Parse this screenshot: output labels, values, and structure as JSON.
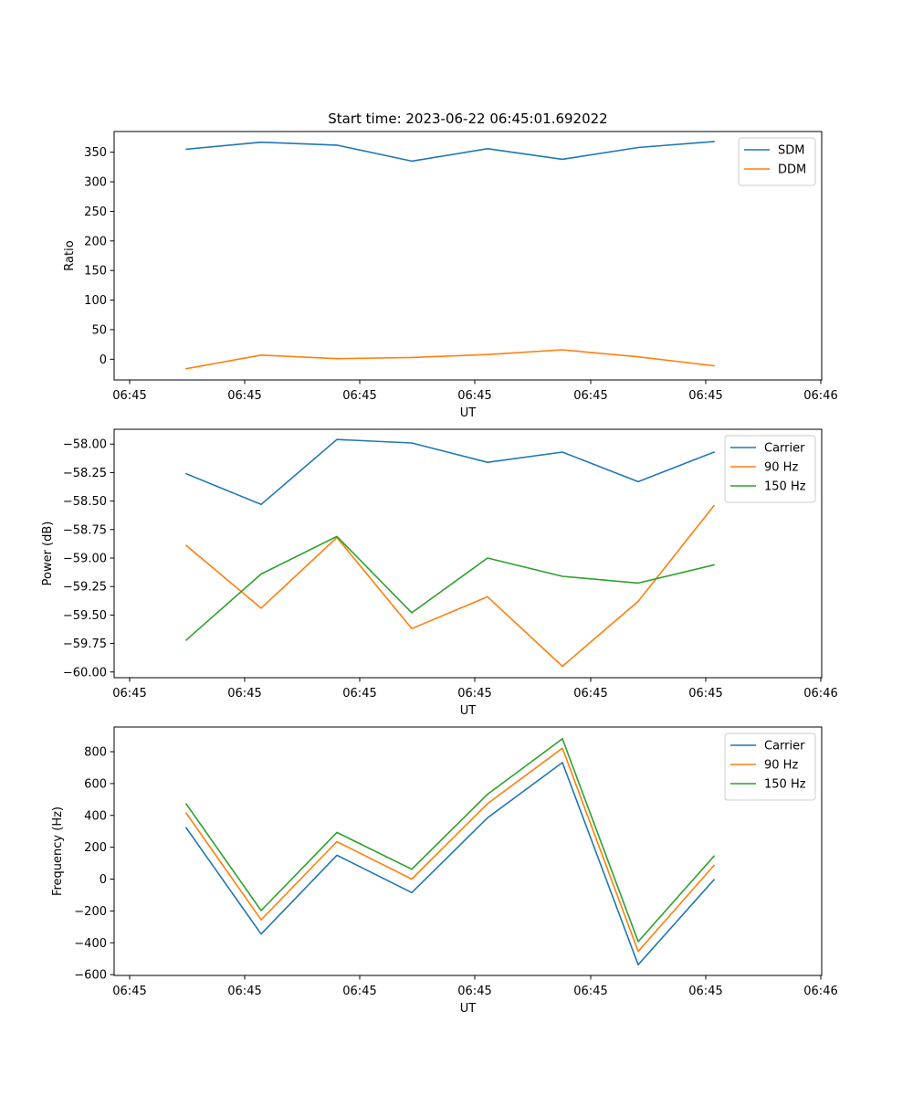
{
  "figure": {
    "title": "Start time: 2023-06-22 06:45:01.692022"
  },
  "chart_data": [
    {
      "type": "line",
      "xlabel": "UT",
      "ylabel": "Ratio",
      "x_tick_labels": [
        "06:45",
        "06:45",
        "06:45",
        "06:45",
        "06:45",
        "06:45",
        "06:46"
      ],
      "y_ticks": [
        0,
        50,
        100,
        150,
        200,
        250,
        300,
        350
      ],
      "ylim": [
        -35,
        385
      ],
      "legend_position": "upper right",
      "series": [
        {
          "name": "SDM",
          "color": "#1f77b4",
          "values": [
            355,
            367,
            362,
            335,
            356,
            338,
            358,
            368
          ]
        },
        {
          "name": "DDM",
          "color": "#ff7f0e",
          "values": [
            -16,
            7,
            1,
            3,
            8,
            16,
            4,
            -11
          ]
        }
      ]
    },
    {
      "type": "line",
      "xlabel": "UT",
      "ylabel": "Power (dB)",
      "x_tick_labels": [
        "06:45",
        "06:45",
        "06:45",
        "06:45",
        "06:45",
        "06:45",
        "06:46"
      ],
      "y_ticks": [
        -60.0,
        -59.75,
        -59.5,
        -59.25,
        -59.0,
        -58.75,
        -58.5,
        -58.25,
        -58.0
      ],
      "y_tick_labels": [
        "−60.00",
        "−59.75",
        "−59.50",
        "−59.25",
        "−59.00",
        "−58.75",
        "−58.50",
        "−58.25",
        "−58.00"
      ],
      "ylim": [
        -60.05,
        -57.87
      ],
      "legend_position": "upper right",
      "series": [
        {
          "name": "Carrier",
          "color": "#1f77b4",
          "values": [
            -58.26,
            -58.53,
            -57.96,
            -57.99,
            -58.16,
            -58.07,
            -58.33,
            -58.07
          ]
        },
        {
          "name": "90 Hz",
          "color": "#ff7f0e",
          "values": [
            -58.89,
            -59.44,
            -58.82,
            -59.62,
            -59.34,
            -59.95,
            -59.38,
            -58.54
          ]
        },
        {
          "name": "150 Hz",
          "color": "#2ca02c",
          "values": [
            -59.72,
            -59.14,
            -58.81,
            -59.48,
            -59.0,
            -59.16,
            -59.22,
            -59.06
          ]
        }
      ]
    },
    {
      "type": "line",
      "xlabel": "UT",
      "ylabel": "Frequency (Hz)",
      "x_tick_labels": [
        "06:45",
        "06:45",
        "06:45",
        "06:45",
        "06:45",
        "06:45",
        "06:46"
      ],
      "y_ticks": [
        -600,
        -400,
        -200,
        0,
        200,
        400,
        600,
        800
      ],
      "y_tick_labels": [
        "−600",
        "−400",
        "−200",
        "0",
        "200",
        "400",
        "600",
        "800"
      ],
      "ylim": [
        -605,
        955
      ],
      "legend_position": "upper right",
      "series": [
        {
          "name": "Carrier",
          "color": "#1f77b4",
          "values": [
            322,
            -345,
            150,
            -85,
            385,
            732,
            -538,
            -4
          ]
        },
        {
          "name": "90 Hz",
          "color": "#ff7f0e",
          "values": [
            414,
            -256,
            235,
            0,
            474,
            822,
            -454,
            86
          ]
        },
        {
          "name": "150 Hz",
          "color": "#2ca02c",
          "values": [
            472,
            -198,
            293,
            62,
            533,
            881,
            -393,
            144
          ]
        }
      ]
    }
  ]
}
